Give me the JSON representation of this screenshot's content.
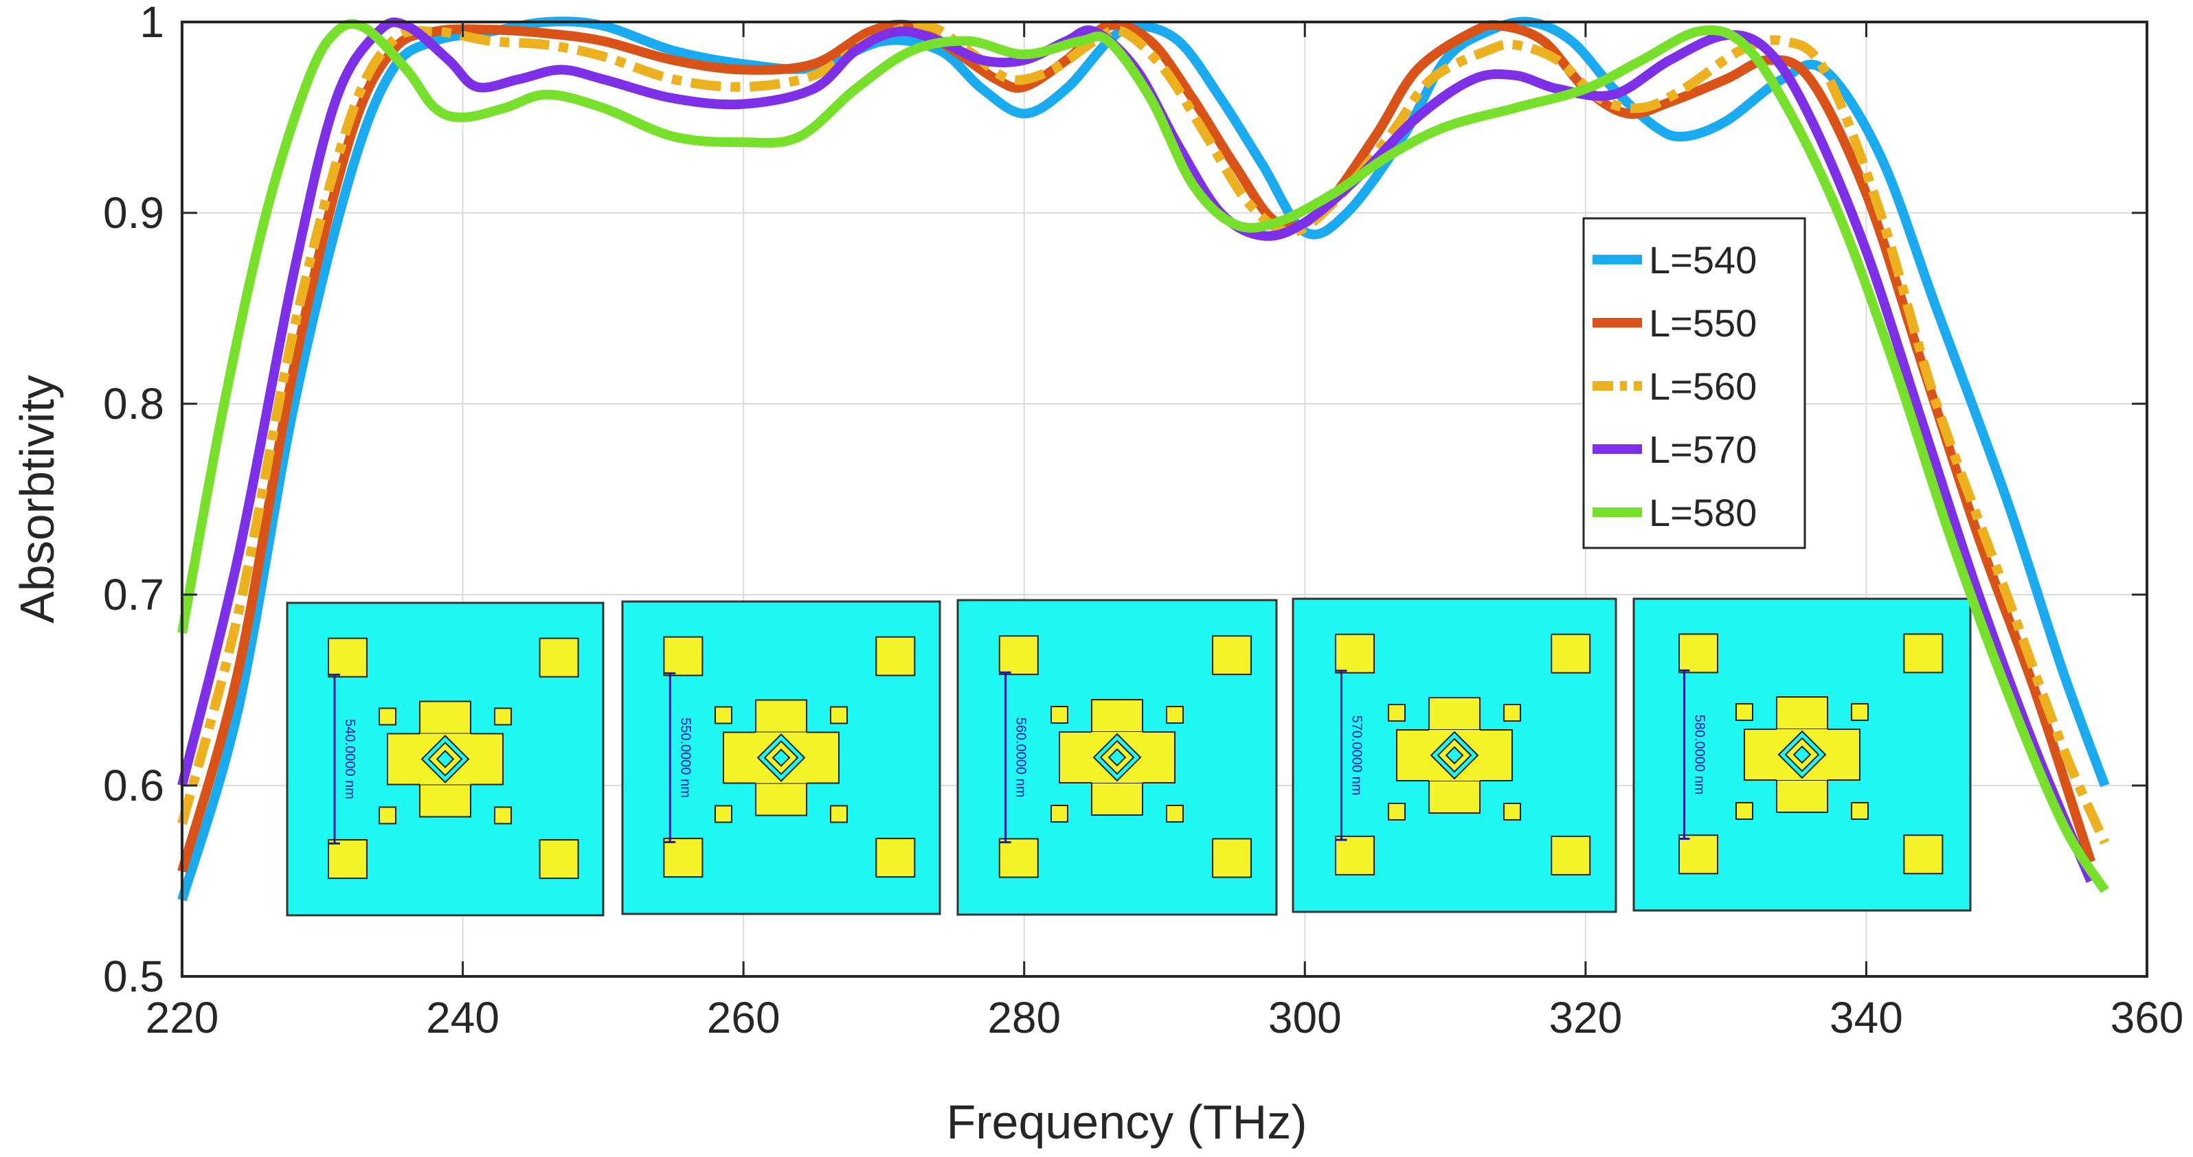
{
  "chart_data": {
    "type": "line",
    "title": "",
    "xlabel": "Frequency (THz)",
    "ylabel": "Absorbtivity",
    "xlim": [
      220,
      360
    ],
    "ylim": [
      0.5,
      1
    ],
    "xticks": [
      220,
      240,
      260,
      280,
      300,
      320,
      340,
      360
    ],
    "yticks": [
      0.5,
      0.6,
      0.7,
      0.8,
      0.9,
      1
    ],
    "ytick_labels": [
      "0.5",
      "0.6",
      "0.7",
      "0.8",
      "0.9",
      "1"
    ],
    "grid": true,
    "legend_position": "right",
    "series": [
      {
        "name": "L=540",
        "color": "#1aaaf0",
        "dashed": false,
        "points": [
          [
            220,
            0.54
          ],
          [
            224,
            0.64
          ],
          [
            228,
            0.8
          ],
          [
            232,
            0.92
          ],
          [
            235,
            0.975
          ],
          [
            238,
            0.99
          ],
          [
            242,
            0.995
          ],
          [
            246,
            1.0
          ],
          [
            250,
            0.998
          ],
          [
            255,
            0.985
          ],
          [
            260,
            0.978
          ],
          [
            265,
            0.976
          ],
          [
            270,
            0.99
          ],
          [
            274,
            0.985
          ],
          [
            277,
            0.965
          ],
          [
            280,
            0.952
          ],
          [
            283,
            0.965
          ],
          [
            286,
            0.99
          ],
          [
            288,
            0.998
          ],
          [
            291,
            0.99
          ],
          [
            294,
            0.96
          ],
          [
            297,
            0.925
          ],
          [
            300,
            0.89
          ],
          [
            303,
            0.9
          ],
          [
            307,
            0.94
          ],
          [
            310,
            0.98
          ],
          [
            313,
            0.995
          ],
          [
            316,
            1.0
          ],
          [
            319,
            0.99
          ],
          [
            322,
            0.965
          ],
          [
            325,
            0.945
          ],
          [
            327,
            0.94
          ],
          [
            330,
            0.948
          ],
          [
            334,
            0.97
          ],
          [
            337,
            0.975
          ],
          [
            341,
            0.93
          ],
          [
            345,
            0.85
          ],
          [
            350,
            0.75
          ],
          [
            354,
            0.66
          ],
          [
            357,
            0.6
          ]
        ]
      },
      {
        "name": "L=550",
        "color": "#d95319",
        "dashed": false,
        "points": [
          [
            220,
            0.555
          ],
          [
            224,
            0.66
          ],
          [
            228,
            0.82
          ],
          [
            232,
            0.94
          ],
          [
            235,
            0.985
          ],
          [
            238,
            0.995
          ],
          [
            242,
            0.996
          ],
          [
            246,
            0.994
          ],
          [
            250,
            0.99
          ],
          [
            255,
            0.98
          ],
          [
            260,
            0.975
          ],
          [
            265,
            0.978
          ],
          [
            269,
            0.995
          ],
          [
            272,
            0.998
          ],
          [
            275,
            0.985
          ],
          [
            278,
            0.97
          ],
          [
            280,
            0.966
          ],
          [
            283,
            0.98
          ],
          [
            286,
            0.998
          ],
          [
            289,
            0.99
          ],
          [
            292,
            0.96
          ],
          [
            295,
            0.925
          ],
          [
            298,
            0.895
          ],
          [
            301,
            0.9
          ],
          [
            305,
            0.94
          ],
          [
            308,
            0.975
          ],
          [
            312,
            0.995
          ],
          [
            314,
            0.998
          ],
          [
            317,
            0.99
          ],
          [
            320,
            0.965
          ],
          [
            323,
            0.952
          ],
          [
            326,
            0.958
          ],
          [
            330,
            0.97
          ],
          [
            333,
            0.98
          ],
          [
            336,
            0.97
          ],
          [
            340,
            0.91
          ],
          [
            344,
            0.82
          ],
          [
            348,
            0.73
          ],
          [
            352,
            0.65
          ],
          [
            356,
            0.56
          ]
        ]
      },
      {
        "name": "L=560",
        "color": "#edb120",
        "dashed": true,
        "points": [
          [
            220,
            0.58
          ],
          [
            224,
            0.69
          ],
          [
            228,
            0.84
          ],
          [
            232,
            0.95
          ],
          [
            235,
            0.99
          ],
          [
            238,
            0.995
          ],
          [
            242,
            0.99
          ],
          [
            246,
            0.988
          ],
          [
            250,
            0.982
          ],
          [
            255,
            0.97
          ],
          [
            260,
            0.966
          ],
          [
            265,
            0.972
          ],
          [
            269,
            0.99
          ],
          [
            273,
            0.998
          ],
          [
            276,
            0.985
          ],
          [
            279,
            0.97
          ],
          [
            282,
            0.975
          ],
          [
            285,
            0.99
          ],
          [
            287,
            0.995
          ],
          [
            290,
            0.975
          ],
          [
            293,
            0.94
          ],
          [
            296,
            0.905
          ],
          [
            299,
            0.89
          ],
          [
            302,
            0.905
          ],
          [
            306,
            0.94
          ],
          [
            309,
            0.97
          ],
          [
            313,
            0.985
          ],
          [
            315,
            0.988
          ],
          [
            318,
            0.98
          ],
          [
            321,
            0.96
          ],
          [
            324,
            0.955
          ],
          [
            327,
            0.965
          ],
          [
            331,
            0.985
          ],
          [
            334,
            0.99
          ],
          [
            337,
            0.975
          ],
          [
            341,
            0.9
          ],
          [
            345,
            0.8
          ],
          [
            350,
            0.7
          ],
          [
            354,
            0.62
          ],
          [
            357,
            0.57
          ]
        ]
      },
      {
        "name": "L=570",
        "color": "#7e2fe8",
        "dashed": false,
        "points": [
          [
            220,
            0.6
          ],
          [
            224,
            0.72
          ],
          [
            228,
            0.87
          ],
          [
            231,
            0.96
          ],
          [
            234,
            0.995
          ],
          [
            236,
            0.998
          ],
          [
            239,
            0.98
          ],
          [
            241,
            0.966
          ],
          [
            244,
            0.97
          ],
          [
            247,
            0.975
          ],
          [
            250,
            0.97
          ],
          [
            255,
            0.96
          ],
          [
            260,
            0.957
          ],
          [
            265,
            0.965
          ],
          [
            268,
            0.985
          ],
          [
            271,
            0.995
          ],
          [
            274,
            0.99
          ],
          [
            277,
            0.98
          ],
          [
            280,
            0.98
          ],
          [
            283,
            0.99
          ],
          [
            285,
            0.995
          ],
          [
            288,
            0.975
          ],
          [
            291,
            0.935
          ],
          [
            294,
            0.9
          ],
          [
            297,
            0.888
          ],
          [
            300,
            0.895
          ],
          [
            304,
            0.92
          ],
          [
            308,
            0.95
          ],
          [
            312,
            0.97
          ],
          [
            315,
            0.972
          ],
          [
            318,
            0.965
          ],
          [
            322,
            0.962
          ],
          [
            326,
            0.98
          ],
          [
            330,
            0.993
          ],
          [
            333,
            0.985
          ],
          [
            336,
            0.95
          ],
          [
            340,
            0.88
          ],
          [
            344,
            0.79
          ],
          [
            348,
            0.7
          ],
          [
            352,
            0.62
          ],
          [
            356,
            0.55
          ]
        ]
      },
      {
        "name": "L=580",
        "color": "#77e02a",
        "dashed": false,
        "points": [
          [
            220,
            0.68
          ],
          [
            223,
            0.8
          ],
          [
            226,
            0.9
          ],
          [
            229,
            0.97
          ],
          [
            231,
            0.995
          ],
          [
            233,
            0.997
          ],
          [
            236,
            0.975
          ],
          [
            238,
            0.955
          ],
          [
            240,
            0.95
          ],
          [
            243,
            0.955
          ],
          [
            246,
            0.962
          ],
          [
            250,
            0.955
          ],
          [
            255,
            0.94
          ],
          [
            260,
            0.937
          ],
          [
            264,
            0.94
          ],
          [
            268,
            0.965
          ],
          [
            272,
            0.985
          ],
          [
            276,
            0.99
          ],
          [
            280,
            0.983
          ],
          [
            284,
            0.99
          ],
          [
            286,
            0.99
          ],
          [
            289,
            0.96
          ],
          [
            292,
            0.915
          ],
          [
            295,
            0.894
          ],
          [
            298,
            0.895
          ],
          [
            302,
            0.91
          ],
          [
            306,
            0.93
          ],
          [
            310,
            0.945
          ],
          [
            315,
            0.955
          ],
          [
            320,
            0.965
          ],
          [
            324,
            0.98
          ],
          [
            328,
            0.995
          ],
          [
            331,
            0.99
          ],
          [
            334,
            0.96
          ],
          [
            338,
            0.9
          ],
          [
            342,
            0.82
          ],
          [
            346,
            0.73
          ],
          [
            350,
            0.65
          ],
          [
            354,
            0.58
          ],
          [
            357,
            0.545
          ]
        ]
      }
    ]
  },
  "insets": [
    {
      "label": "540.0000 nm"
    },
    {
      "label": "550.0000 nm"
    },
    {
      "label": "560.0000 nm"
    },
    {
      "label": "570.0000 nm"
    },
    {
      "label": "580.0000 nm"
    }
  ],
  "colors": {
    "inset_background": "#1ef7f2",
    "inset_pattern": "#f4f32a",
    "dimension_line": "#1a1aa6"
  }
}
